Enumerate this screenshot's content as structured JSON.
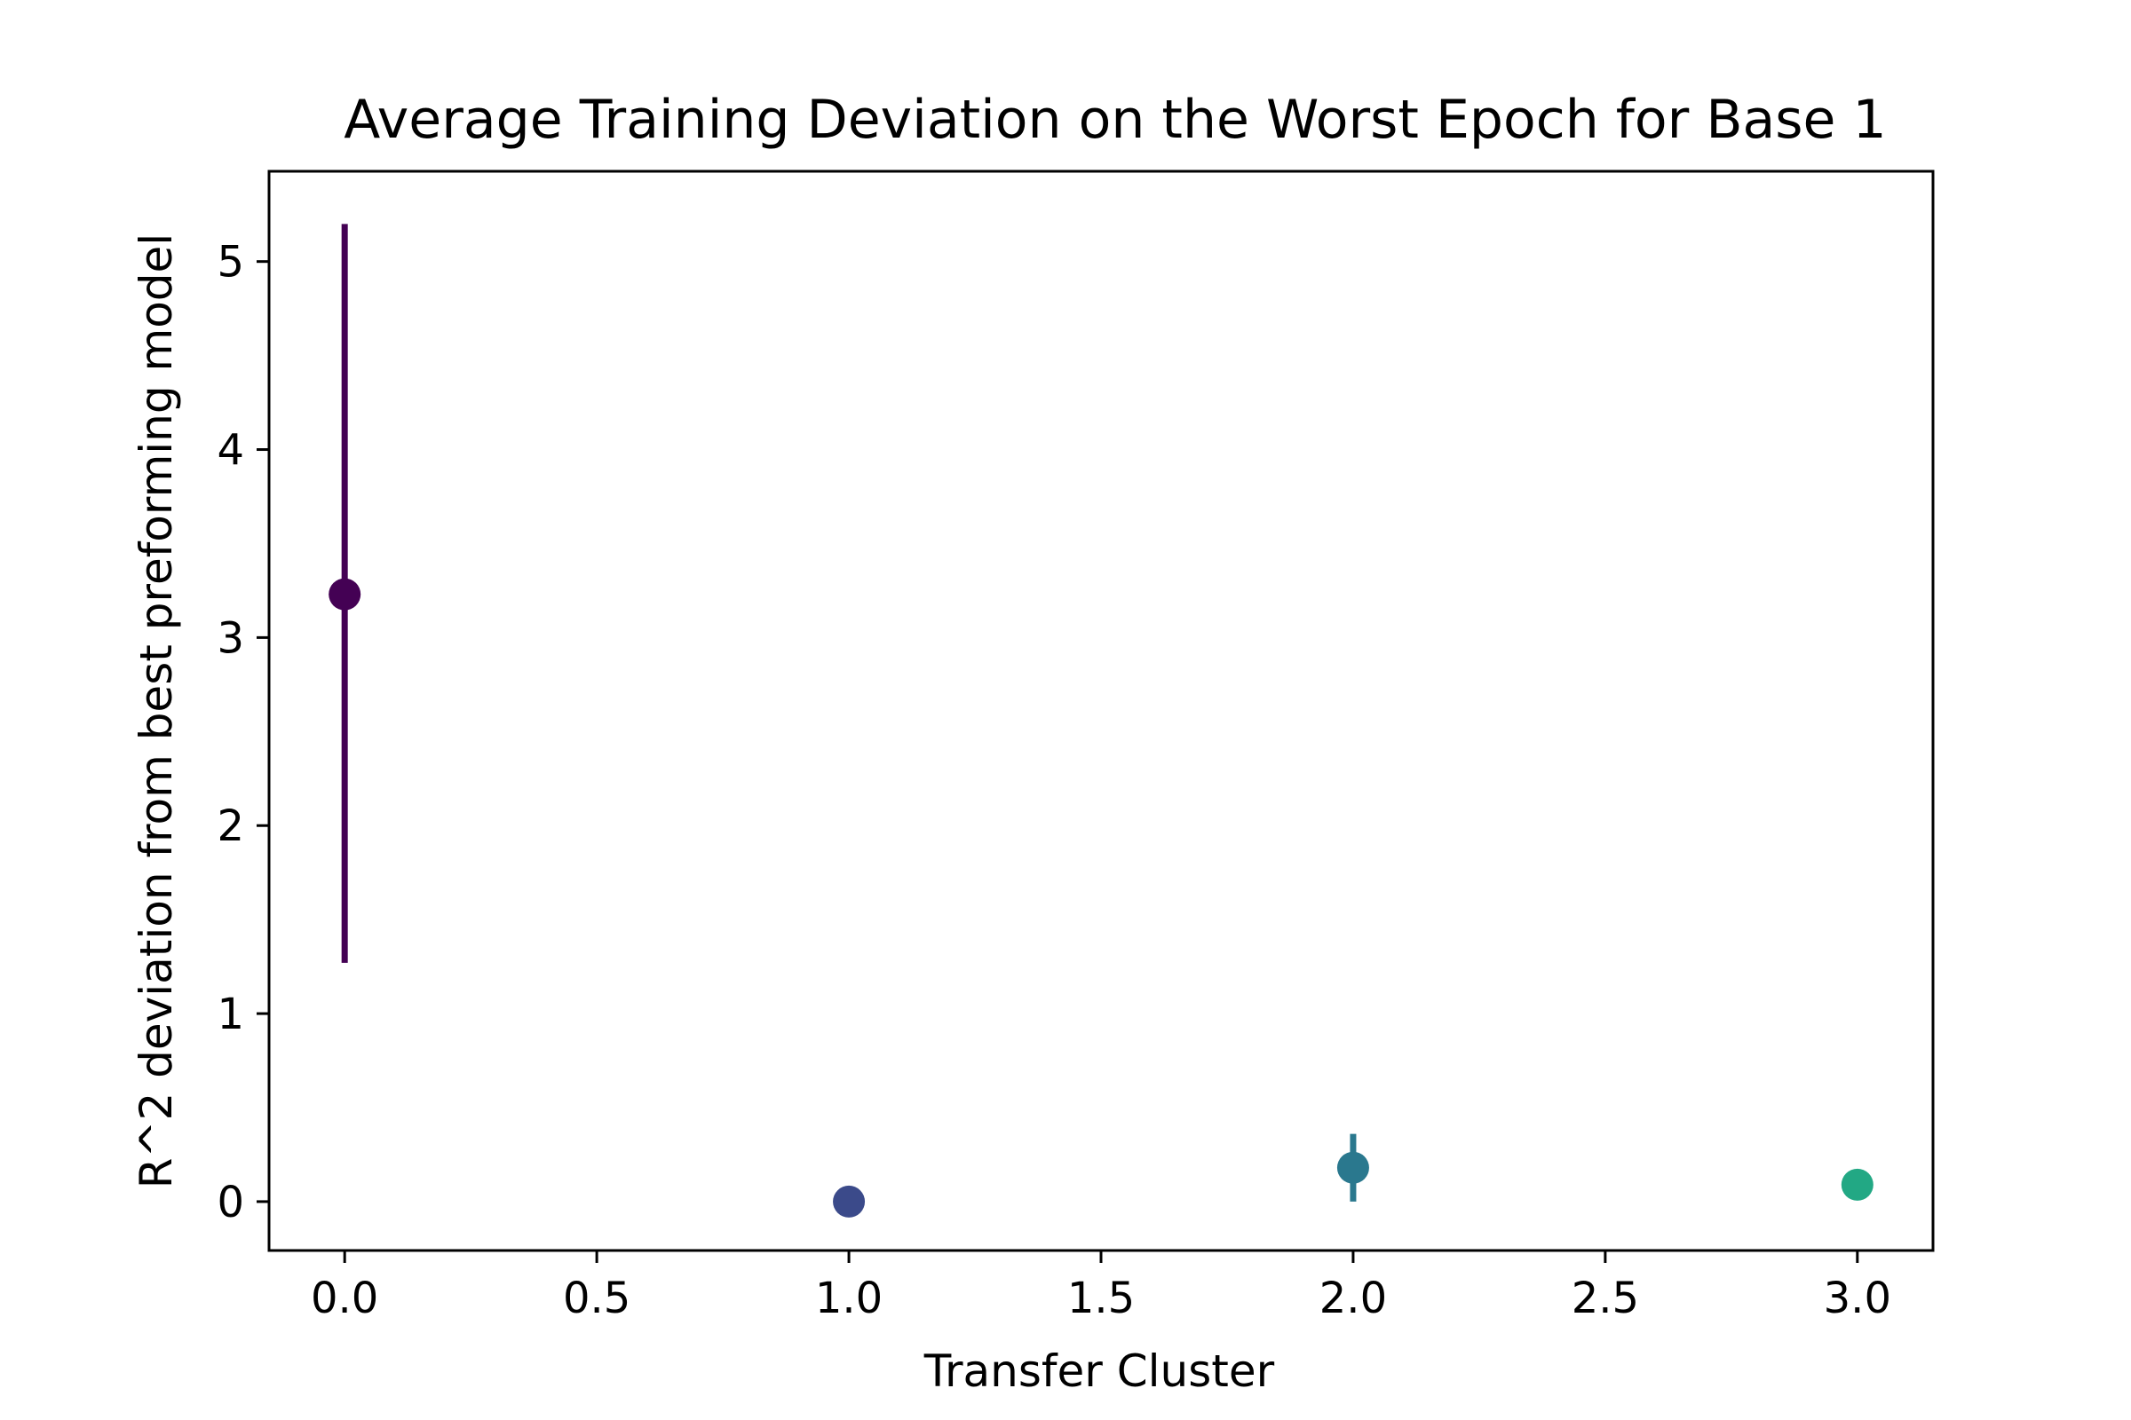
{
  "chart_data": {
    "type": "scatter",
    "title": "Average Training Deviation on the Worst Epoch for Base 1",
    "xlabel": "Transfer Cluster",
    "ylabel": "R^2 deviation from best preforming model",
    "xlim": [
      -0.15,
      3.15
    ],
    "ylim": [
      -0.26,
      5.48
    ],
    "x_ticks": [
      0.0,
      0.5,
      1.0,
      1.5,
      2.0,
      2.5,
      3.0
    ],
    "x_tick_labels": [
      "0.0",
      "0.5",
      "1.0",
      "1.5",
      "2.0",
      "2.5",
      "3.0"
    ],
    "y_ticks": [
      0,
      1,
      2,
      3,
      4,
      5
    ],
    "y_tick_labels": [
      "0",
      "1",
      "2",
      "3",
      "4",
      "5"
    ],
    "grid": false,
    "points": [
      {
        "x": 0,
        "y": 3.23,
        "error_low": 1.27,
        "error_high": 5.2,
        "color": "#440154"
      },
      {
        "x": 1,
        "y": 0.0,
        "error_low": 0.0,
        "error_high": 0.0,
        "color": "#3b4a8a"
      },
      {
        "x": 2,
        "y": 0.18,
        "error_low": 0.0,
        "error_high": 0.36,
        "color": "#2a788e"
      },
      {
        "x": 3,
        "y": 0.09,
        "error_low": 0.09,
        "error_high": 0.09,
        "color": "#22a884"
      }
    ]
  }
}
